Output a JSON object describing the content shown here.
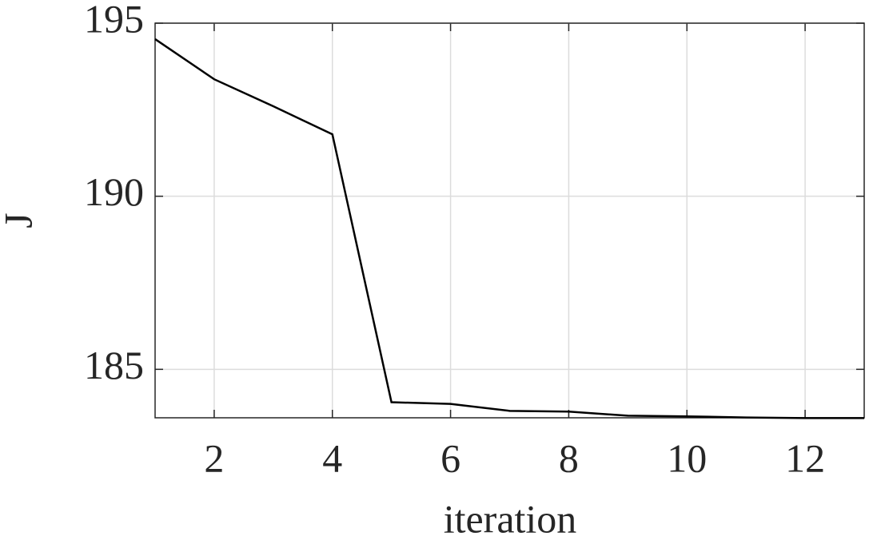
{
  "chart_data": {
    "type": "line",
    "x_label": "iteration",
    "y_label": "J",
    "x": [
      1,
      2,
      3,
      4,
      5,
      6,
      7,
      8,
      9,
      10,
      11,
      12,
      13
    ],
    "series": [
      {
        "name": "J",
        "color": "#000000",
        "values": [
          194.54,
          193.38,
          192.6,
          191.79,
          184.05,
          184.0,
          183.8,
          183.78,
          183.66,
          183.64,
          183.61,
          183.59,
          183.59
        ]
      }
    ],
    "xlim": [
      1,
      13
    ],
    "xticks": [
      2,
      4,
      6,
      8,
      10,
      12
    ],
    "ylim": [
      183.6,
      195
    ],
    "yticks": [
      185,
      190,
      195
    ],
    "grid": true
  }
}
